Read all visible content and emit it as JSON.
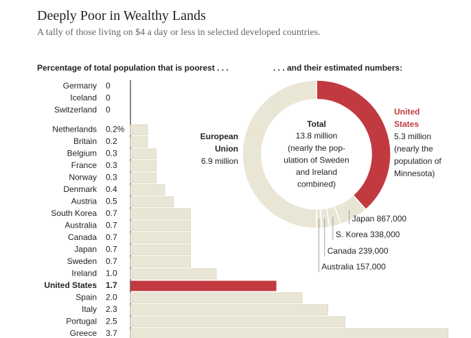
{
  "title": "Deeply Poor in Wealthy Lands",
  "subtitle": "A tally of those living on $4 a day or less in selected developed countries.",
  "chart_data": [
    {
      "type": "bar",
      "title": "Percentage of total population that is poorest . . .",
      "categories": [
        "Germany",
        "Iceland",
        "Switzerland",
        "Netherlands",
        "Britain",
        "Belgium",
        "France",
        "Norway",
        "Denmark",
        "Austria",
        "South Korea",
        "Australia",
        "Canada",
        "Japan",
        "Sweden",
        "Ireland",
        "United States",
        "Spain",
        "Italy",
        "Portugal",
        "Greece"
      ],
      "values": [
        0,
        0,
        0,
        0.2,
        0.2,
        0.3,
        0.3,
        0.3,
        0.4,
        0.5,
        0.7,
        0.7,
        0.7,
        0.7,
        0.7,
        1.0,
        1.7,
        2.0,
        2.3,
        2.5,
        3.7
      ],
      "value_labels": [
        "0",
        "0",
        "0",
        "0.2%",
        "0.2",
        "0.3",
        "0.3",
        "0.3",
        "0.4",
        "0.5",
        "0.7",
        "0.7",
        "0.7",
        "0.7",
        "0.7",
        "1.0",
        "1.7",
        "2.0",
        "2.3",
        "2.5",
        "3.7"
      ],
      "color": "#e9e6d6",
      "highlight": "United States",
      "highlight_color": "#c03a40"
    },
    {
      "type": "donut",
      "title": ". . . and their estimated numbers:",
      "categories": [
        "United States",
        "Japan",
        "S. Korea",
        "Canada",
        "Australia",
        "European Union"
      ],
      "values": [
        5300000,
        867000,
        338000,
        239000,
        157000,
        6900000
      ],
      "value_labels": [
        "5.3 million",
        "867,000",
        "338,000",
        "239,000",
        "157,000",
        "6.9 million"
      ],
      "colors": [
        "#c03a40",
        "#e9e6d6",
        "#e9e6d6",
        "#e9e6d6",
        "#e9e6d6",
        "#e9e6d6"
      ],
      "us_note": [
        "(nearly the",
        "population of",
        "Minnesota)"
      ],
      "total_title": "Total",
      "total": 13800000,
      "total_label": "13.8 million",
      "total_note": [
        "(nearly the pop-",
        "ulation of Sweden",
        "and Ireland",
        "combined)"
      ]
    }
  ]
}
